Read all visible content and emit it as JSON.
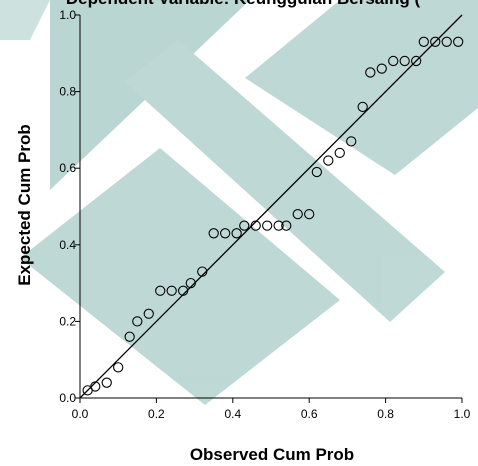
{
  "chart_data": {
    "type": "scatter",
    "title": "Dependent Variable: Keunggulan Bersaing (",
    "xlabel": "Observed Cum Prob",
    "ylabel": "Expected Cum Prob",
    "xlim": [
      0.0,
      1.0
    ],
    "ylim": [
      0.0,
      1.0
    ],
    "x_ticks": [
      "0.0",
      "0.2",
      "0.4",
      "0.6",
      "0.8",
      "1.0"
    ],
    "y_ticks": [
      "0.0",
      "0.2",
      "0.4",
      "0.6",
      "0.8",
      "1.0"
    ],
    "reference_line": {
      "from": [
        0,
        0
      ],
      "to": [
        1,
        1
      ]
    },
    "grid": false,
    "series": [
      {
        "points": [
          [
            0.02,
            0.02
          ],
          [
            0.04,
            0.03
          ],
          [
            0.07,
            0.04
          ],
          [
            0.1,
            0.08
          ],
          [
            0.13,
            0.16
          ],
          [
            0.15,
            0.2
          ],
          [
            0.18,
            0.22
          ],
          [
            0.21,
            0.28
          ],
          [
            0.24,
            0.28
          ],
          [
            0.27,
            0.28
          ],
          [
            0.29,
            0.3
          ],
          [
            0.32,
            0.33
          ],
          [
            0.35,
            0.43
          ],
          [
            0.38,
            0.43
          ],
          [
            0.41,
            0.43
          ],
          [
            0.43,
            0.45
          ],
          [
            0.46,
            0.45
          ],
          [
            0.49,
            0.45
          ],
          [
            0.52,
            0.45
          ],
          [
            0.54,
            0.45
          ],
          [
            0.57,
            0.48
          ],
          [
            0.6,
            0.48
          ],
          [
            0.62,
            0.59
          ],
          [
            0.65,
            0.62
          ],
          [
            0.68,
            0.64
          ],
          [
            0.71,
            0.67
          ],
          [
            0.74,
            0.76
          ],
          [
            0.76,
            0.85
          ],
          [
            0.79,
            0.86
          ],
          [
            0.82,
            0.88
          ],
          [
            0.85,
            0.88
          ],
          [
            0.88,
            0.88
          ],
          [
            0.9,
            0.93
          ],
          [
            0.93,
            0.93
          ],
          [
            0.96,
            0.93
          ],
          [
            0.99,
            0.93
          ]
        ]
      }
    ]
  }
}
